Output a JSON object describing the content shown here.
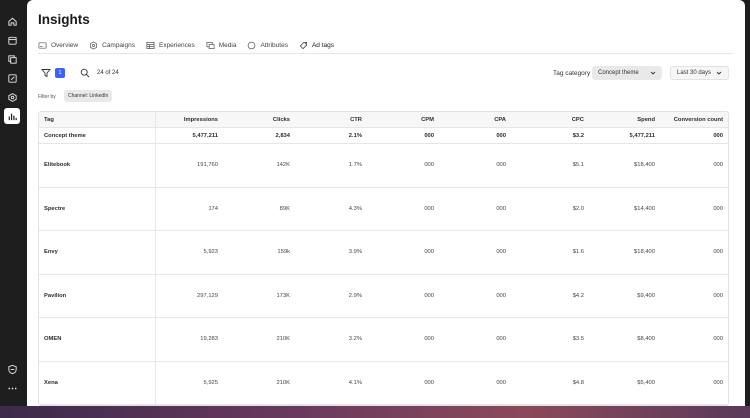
{
  "rail": {
    "icons": [
      "home-icon",
      "calendar-icon",
      "files-icon",
      "edit-icon",
      "target-icon",
      "chart-icon",
      "shield-icon",
      "more-icon"
    ]
  },
  "page": {
    "title": "Insights"
  },
  "tabs": [
    {
      "label": "Overview",
      "icon": "overview-icon"
    },
    {
      "label": "Campaigns",
      "icon": "campaigns-icon"
    },
    {
      "label": "Experiences",
      "icon": "experiences-icon"
    },
    {
      "label": "Media",
      "icon": "media-icon"
    },
    {
      "label": "Attributes",
      "icon": "attributes-icon"
    },
    {
      "label": "Ad tags",
      "icon": "ad-tags-icon",
      "active": true
    }
  ],
  "toolbar": {
    "filter_count": "1",
    "result_count": "24 of 24",
    "tag_category_label": "Tag category",
    "tag_category_value": "Concept theme",
    "date_range_value": "Last 30 days"
  },
  "filters": {
    "label": "Filter by",
    "chip": "Channel: LinkedIn"
  },
  "table": {
    "columns": [
      "Tag",
      "Impressions",
      "Clicks",
      "CTR",
      "CPM",
      "CPA",
      "CPC",
      "Spend",
      "Conversion count"
    ],
    "total": [
      "Concept theme",
      "5,477,211",
      "2,834",
      "2.1%",
      "000",
      "000",
      "$3.2",
      "5,477,211",
      "000"
    ],
    "rows": [
      [
        "Elitebook",
        "191,760",
        "142K",
        "1.7%",
        "000",
        "000",
        "$5.1",
        "$18,400",
        "000"
      ],
      [
        "Spectre",
        "174",
        "89K",
        "4.3%",
        "000",
        "000",
        "$2.0",
        "$14,400",
        "000"
      ],
      [
        "Envy",
        "5,923",
        "159k",
        "3.9%",
        "000",
        "000",
        "$1.6",
        "$18,400",
        "000"
      ],
      [
        "Pavilion",
        "297,129",
        "173K",
        "2.9%",
        "000",
        "000",
        "$4.2",
        "$9,400",
        "000"
      ],
      [
        "OMEN",
        "19,283",
        "210K",
        "3.2%",
        "000",
        "000",
        "$3.5",
        "$8,400",
        "000"
      ],
      [
        "Xena",
        "5,925",
        "210K",
        "4.1%",
        "000",
        "000",
        "$4.8",
        "$5,400",
        "000"
      ]
    ]
  }
}
